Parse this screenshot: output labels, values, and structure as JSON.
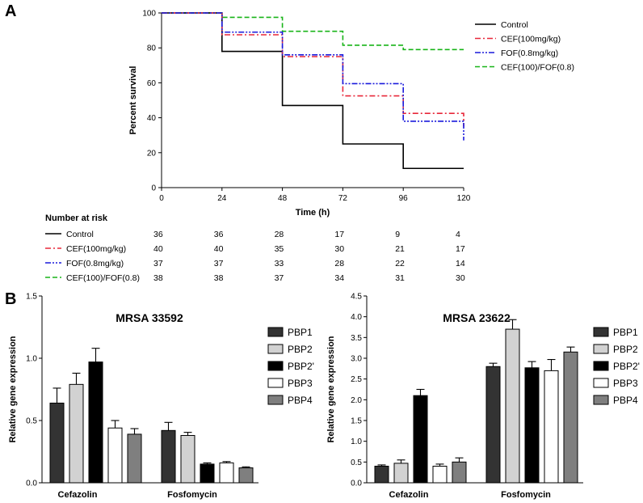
{
  "panels": {
    "a_label": "A",
    "b_label": "B"
  },
  "risk_table": {
    "title": "Number at risk"
  },
  "chart_data": [
    {
      "id": "survival",
      "type": "line",
      "subtype": "step",
      "title": "",
      "xlabel": "Time (h)",
      "ylabel": "Percent survival",
      "xlim": [
        0,
        120
      ],
      "ylim": [
        0,
        100
      ],
      "xticks": [
        0,
        24,
        48,
        72,
        96,
        120
      ],
      "yticks": [
        0,
        20,
        40,
        60,
        80,
        100
      ],
      "legend_position": "top-right",
      "grid": false,
      "series": [
        {
          "name": "Control",
          "color": "#000000",
          "dash": "solid",
          "times": [
            0,
            24,
            48,
            72,
            96,
            120
          ],
          "values": [
            100,
            78,
            47,
            25,
            11,
            11
          ],
          "end_drop": null,
          "at_risk": [
            36,
            36,
            28,
            17,
            9,
            4
          ]
        },
        {
          "name": "CEF(100mg/kg)",
          "color": "#e8283a",
          "dash": "dashdot",
          "times": [
            0,
            24,
            48,
            72,
            96,
            120
          ],
          "values": [
            100,
            87.5,
            75,
            52.5,
            42.5,
            42.5
          ],
          "end_drop": 35,
          "at_risk": [
            40,
            40,
            35,
            30,
            21,
            17
          ]
        },
        {
          "name": "FOF(0.8mg/kg)",
          "color": "#1a1adc",
          "dash": "dashdotdot",
          "times": [
            0,
            24,
            48,
            72,
            96,
            120
          ],
          "values": [
            100,
            89,
            76,
            59.5,
            38,
            38
          ],
          "end_drop": 27,
          "at_risk": [
            37,
            37,
            33,
            28,
            22,
            14
          ]
        },
        {
          "name": "CEF(100)/FOF(0.8)",
          "color": "#18b418",
          "dash": "dashed",
          "times": [
            0,
            24,
            48,
            72,
            96,
            120
          ],
          "values": [
            100,
            97.5,
            89.5,
            81.5,
            79,
            79
          ],
          "end_drop": null,
          "at_risk": [
            38,
            38,
            37,
            34,
            31,
            30
          ]
        }
      ]
    },
    {
      "id": "mrsa33592",
      "type": "bar",
      "title": "MRSA 33592",
      "xlabel": "",
      "ylabel": "Relative gene expression",
      "categories": [
        "Cefazolin",
        "Fosfomycin"
      ],
      "ylim": [
        0,
        1.5
      ],
      "yticks": [
        0,
        0.5,
        1,
        1.5
      ],
      "ytick_labels": [
        "0.0",
        "0.5",
        "1.0",
        "1.5"
      ],
      "legend_position": "right",
      "series": [
        {
          "name": "PBP1",
          "color": "#333333",
          "values": [
            0.64,
            0.42
          ],
          "errors": [
            0.12,
            0.065
          ]
        },
        {
          "name": "PBP2",
          "color": "#d2d2d2",
          "values": [
            0.79,
            0.38
          ],
          "errors": [
            0.09,
            0.025
          ]
        },
        {
          "name": "PBP2'",
          "color": "#000000",
          "values": [
            0.97,
            0.15
          ],
          "errors": [
            0.11,
            0.01
          ]
        },
        {
          "name": "PBP3",
          "color": "#ffffff",
          "values": [
            0.44,
            0.16
          ],
          "errors": [
            0.06,
            0.01
          ]
        },
        {
          "name": "PBP4",
          "color": "#7f7f7f",
          "values": [
            0.39,
            0.12
          ],
          "errors": [
            0.045,
            0.008
          ]
        }
      ]
    },
    {
      "id": "mrsa23622",
      "type": "bar",
      "title": "MRSA 23622",
      "xlabel": "",
      "ylabel": "Relative gene expression",
      "categories": [
        "Cefazolin",
        "Fosfomycin"
      ],
      "ylim": [
        0,
        4.5
      ],
      "yticks": [
        0,
        0.5,
        1,
        1.5,
        2,
        2.5,
        3,
        3.5,
        4,
        4.5
      ],
      "ytick_labels": [
        "0.0",
        "0.5",
        "1.0",
        "1.5",
        "2.0",
        "2.5",
        "3.0",
        "3.5",
        "4.0",
        "4.5"
      ],
      "legend_position": "right",
      "series": [
        {
          "name": "PBP1",
          "color": "#333333",
          "values": [
            0.4,
            2.8
          ],
          "errors": [
            0.03,
            0.08
          ]
        },
        {
          "name": "PBP2",
          "color": "#d2d2d2",
          "values": [
            0.47,
            3.7
          ],
          "errors": [
            0.08,
            0.23
          ]
        },
        {
          "name": "PBP2'",
          "color": "#000000",
          "values": [
            2.1,
            2.77
          ],
          "errors": [
            0.15,
            0.15
          ]
        },
        {
          "name": "PBP3",
          "color": "#ffffff",
          "values": [
            0.4,
            2.7
          ],
          "errors": [
            0.05,
            0.27
          ]
        },
        {
          "name": "PBP4",
          "color": "#7f7f7f",
          "values": [
            0.5,
            3.15
          ],
          "errors": [
            0.1,
            0.12
          ]
        }
      ]
    }
  ]
}
